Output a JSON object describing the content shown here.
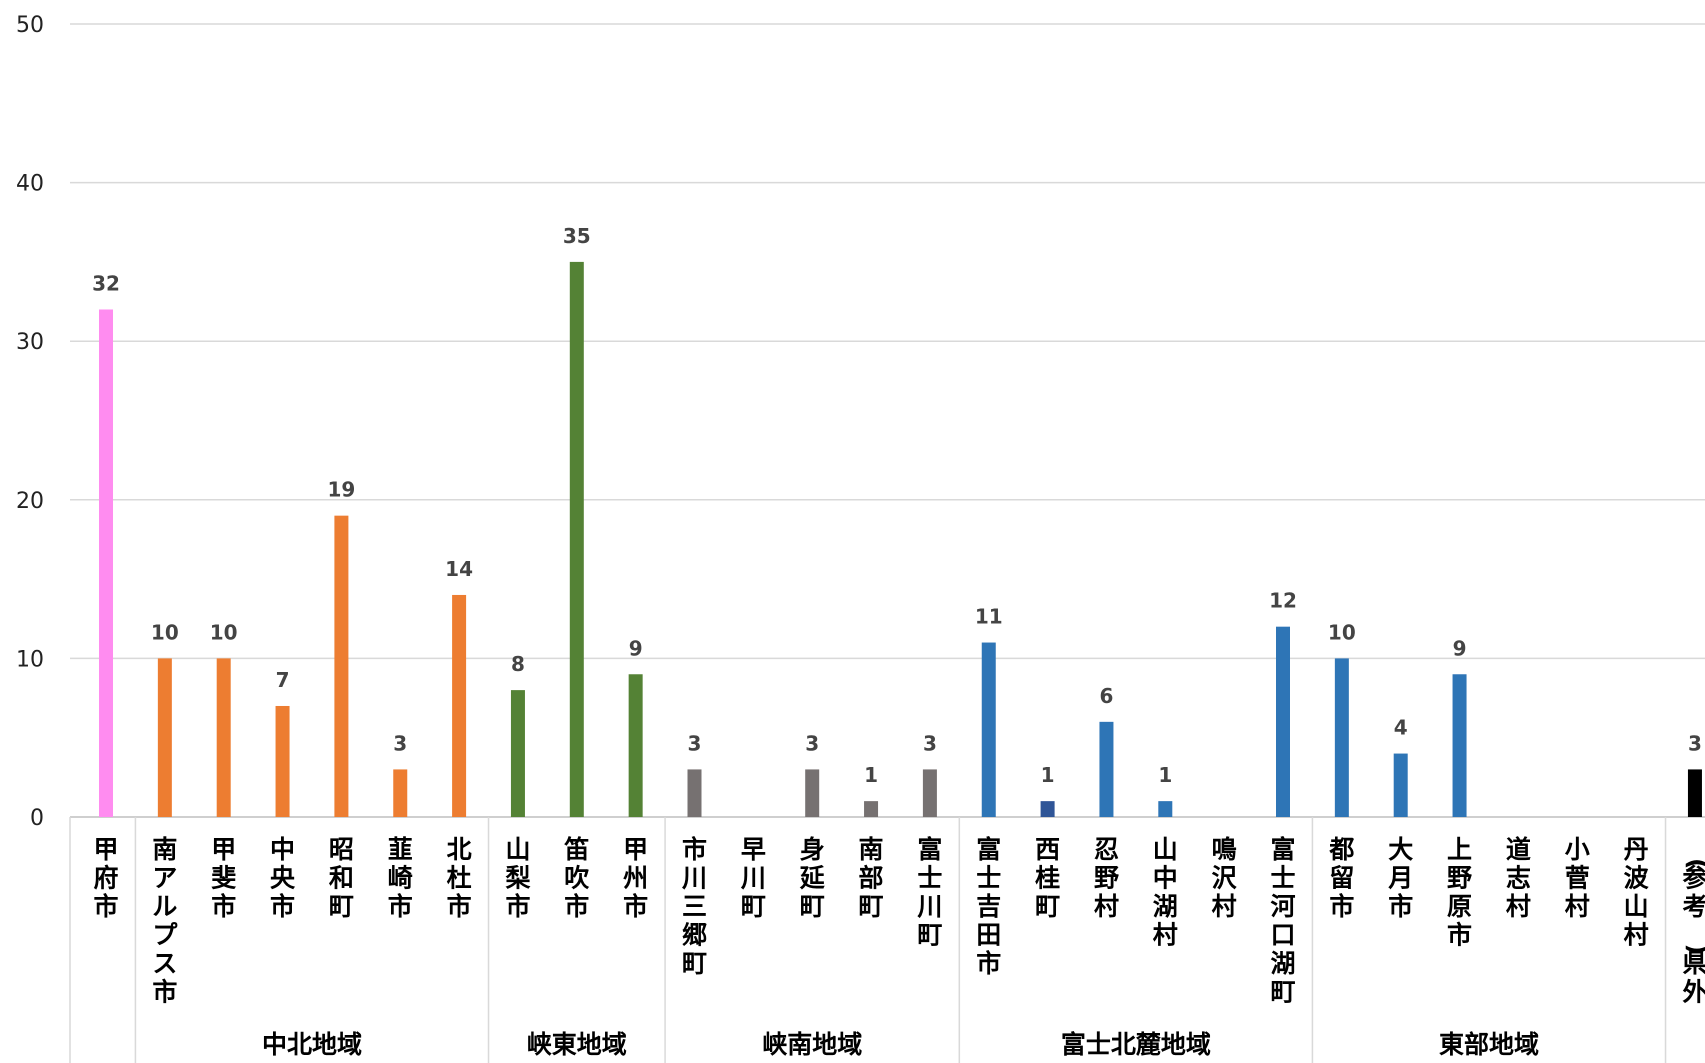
{
  "chart_data": {
    "type": "bar",
    "ylim": [
      0,
      50
    ],
    "yticks": [
      "0",
      "10",
      "20",
      "30",
      "40",
      "50"
    ],
    "grid": true,
    "categories": [
      "甲府市",
      "南アルプス市",
      "甲斐市",
      "中央市",
      "昭和町",
      "韮崎市",
      "北杜市",
      "山梨市",
      "笛吹市",
      "甲州市",
      "市川三郷町",
      "早川町",
      "身延町",
      "南部町",
      "富士川町",
      "富士吉田市",
      "西桂町",
      "忍野村",
      "山中湖村",
      "鳴沢村",
      "富士河口湖町",
      "都留市",
      "大月市",
      "上野原市",
      "道志村",
      "小菅村",
      "丹波山村",
      "(参考)県外"
    ],
    "values": [
      32,
      10,
      10,
      7,
      19,
      3,
      14,
      8,
      35,
      9,
      3,
      0,
      3,
      1,
      3,
      11,
      1,
      6,
      1,
      0,
      12,
      10,
      4,
      9,
      0,
      0,
      0,
      3
    ],
    "data_labels": [
      "32",
      "10",
      "10",
      "7",
      "19",
      "3",
      "14",
      "8",
      "35",
      "9",
      "3",
      "",
      "3",
      "1",
      "3",
      "11",
      "1",
      "6",
      "1",
      "",
      "12",
      "10",
      "4",
      "9",
      "",
      "",
      "",
      "3"
    ],
    "colors": [
      "#ff8cf0",
      "#ed7d31",
      "#ed7d31",
      "#ed7d31",
      "#ed7d31",
      "#ed7d31",
      "#ed7d31",
      "#548235",
      "#548235",
      "#548235",
      "#767171",
      "#767171",
      "#767171",
      "#767171",
      "#767171",
      "#2e75b6",
      "#2f5597",
      "#2e75b6",
      "#2e75b6",
      "#2e75b6",
      "#2e75b6",
      "#2e75b6",
      "#2e75b6",
      "#2e75b6",
      "#2e75b6",
      "#2e75b6",
      "#2e75b6",
      "#000000"
    ],
    "groups": [
      {
        "label": "中北地域",
        "start": 1,
        "end": 6
      },
      {
        "label": "峡東地域",
        "start": 7,
        "end": 9
      },
      {
        "label": "峡南地域",
        "start": 10,
        "end": 14
      },
      {
        "label": "富士北麓地域",
        "start": 15,
        "end": 20
      },
      {
        "label": "東部地域",
        "start": 21,
        "end": 26
      }
    ]
  }
}
